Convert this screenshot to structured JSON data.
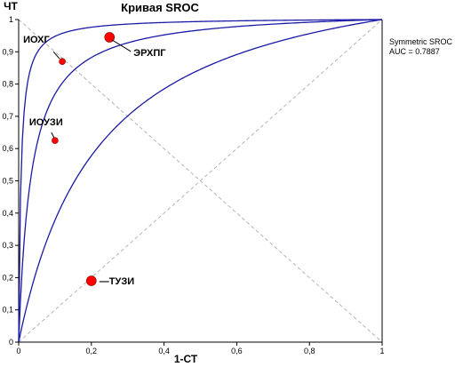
{
  "chart_data": {
    "type": "line",
    "title": "Кривая SROC",
    "xlabel": "1-СТ",
    "ylabel": "ЧТ",
    "xlim": [
      0,
      1
    ],
    "ylim": [
      0,
      1
    ],
    "x_ticks": [
      {
        "value": 0,
        "label": "0"
      },
      {
        "value": 0.2,
        "label": "0,2"
      },
      {
        "value": 0.4,
        "label": "0,4"
      },
      {
        "value": 0.6,
        "label": "0,6"
      },
      {
        "value": 0.8,
        "label": "0,8"
      },
      {
        "value": 1,
        "label": "1"
      }
    ],
    "y_ticks": [
      {
        "value": 0,
        "label": "0"
      },
      {
        "value": 0.1,
        "label": "0,1"
      },
      {
        "value": 0.2,
        "label": "0,2"
      },
      {
        "value": 0.3,
        "label": "0,3"
      },
      {
        "value": 0.4,
        "label": "0,4"
      },
      {
        "value": 0.5,
        "label": "0,5"
      },
      {
        "value": 0.6,
        "label": "0,6"
      },
      {
        "value": 0.7,
        "label": "0,7"
      },
      {
        "value": 0.8,
        "label": "0,8"
      },
      {
        "value": 0.9,
        "label": "0,9"
      },
      {
        "value": 1,
        "label": "1"
      }
    ],
    "curves": [
      {
        "log_dor": 1.7
      },
      {
        "log_dor": 3.4
      },
      {
        "log_dor": 5.1
      }
    ],
    "points": [
      {
        "label": "ИОХГ",
        "x": 0.12,
        "y": 0.87,
        "size": "small"
      },
      {
        "label": "ЭРХПГ",
        "x": 0.25,
        "y": 0.945,
        "size": "large"
      },
      {
        "label": "ИОУЗИ",
        "x": 0.1,
        "y": 0.625,
        "size": "small"
      },
      {
        "label": "—ТУЗИ",
        "x": 0.2,
        "y": 0.19,
        "size": "large"
      }
    ],
    "grid": "diagonals",
    "curve_color": "#1a1aa6",
    "point_color": "#ff0000",
    "grid_color": "#b4b4b4",
    "stats": {
      "line1": "Symmetric SROC",
      "line2": "AUC = 0.7887"
    }
  }
}
